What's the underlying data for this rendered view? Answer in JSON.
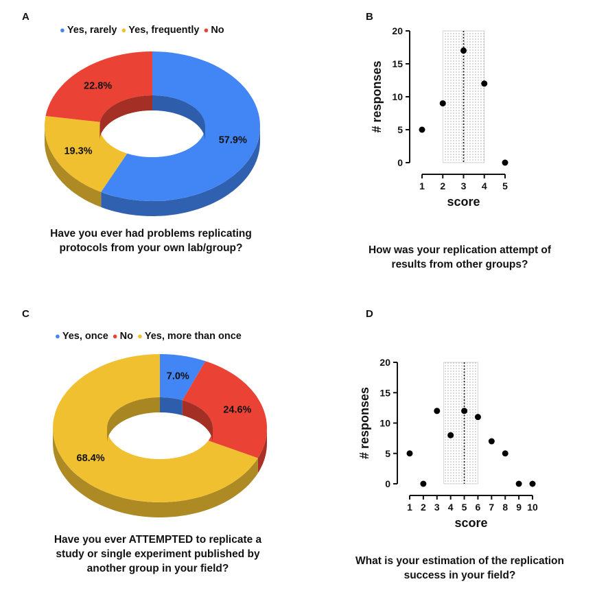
{
  "panels": {
    "A": {
      "label": "A",
      "question": [
        "Have you ever had problems replicating",
        "protocols from your own lab/group?"
      ]
    },
    "B": {
      "label": "B",
      "question": [
        "How was your replication attempt of",
        "results from other groups?"
      ]
    },
    "C": {
      "label": "C",
      "question": [
        "Have you ever ATTEMPTED to replicate a",
        "study or single experiment published by",
        "another group in your field?"
      ]
    },
    "D": {
      "label": "D",
      "question": [
        "What is your estimation of the replication",
        "success in your field?"
      ]
    }
  },
  "colors": {
    "blue": "#4285f4",
    "yellow": "#f0c030",
    "red": "#ea4335"
  },
  "chart_data": [
    {
      "id": "A",
      "type": "pie",
      "style": "3d-donut",
      "legend_position": "top",
      "slices": [
        {
          "label": "Yes, rarely",
          "value": 57.9,
          "value_label": "57.9%",
          "color": "#4285f4"
        },
        {
          "label": "Yes, frequently",
          "value": 19.3,
          "value_label": "19.3%",
          "color": "#f0c030"
        },
        {
          "label": "No",
          "value": 22.8,
          "value_label": "22.8%",
          "color": "#ea4335"
        }
      ]
    },
    {
      "id": "B",
      "type": "scatter",
      "xlabel": "score",
      "ylabel": "# responses",
      "xticks": [
        "1",
        "2",
        "3",
        "4",
        "5"
      ],
      "yticks": [
        "0",
        "5",
        "10",
        "15",
        "20"
      ],
      "xlim": [
        1,
        5
      ],
      "ylim": [
        0,
        20
      ],
      "x": [
        1,
        2,
        3,
        4,
        5
      ],
      "y": [
        5,
        9,
        17,
        12,
        0
      ],
      "shaded_range": [
        2,
        4
      ],
      "median_line": 3
    },
    {
      "id": "C",
      "type": "pie",
      "style": "3d-donut",
      "legend_position": "top",
      "slices": [
        {
          "label": "Yes, once",
          "value": 7.0,
          "value_label": "7.0%",
          "color": "#4285f4"
        },
        {
          "label": "No",
          "value": 24.6,
          "value_label": "24.6%",
          "color": "#ea4335"
        },
        {
          "label": "Yes, more than once",
          "value": 68.4,
          "value_label": "68.4%",
          "color": "#f0c030"
        }
      ]
    },
    {
      "id": "D",
      "type": "scatter",
      "xlabel": "score",
      "ylabel": "# responses",
      "xticks": [
        "1",
        "2",
        "3",
        "4",
        "5",
        "6",
        "7",
        "8",
        "9",
        "10"
      ],
      "yticks": [
        "0",
        "5",
        "10",
        "15",
        "20"
      ],
      "xlim": [
        1,
        10
      ],
      "ylim": [
        0,
        20
      ],
      "x": [
        1,
        2,
        3,
        4,
        5,
        6,
        7,
        8,
        9,
        10
      ],
      "y": [
        5,
        0,
        12,
        8,
        12,
        11,
        7,
        5,
        0,
        0
      ],
      "shaded_range": [
        3.5,
        6
      ],
      "median_line": 5
    }
  ]
}
